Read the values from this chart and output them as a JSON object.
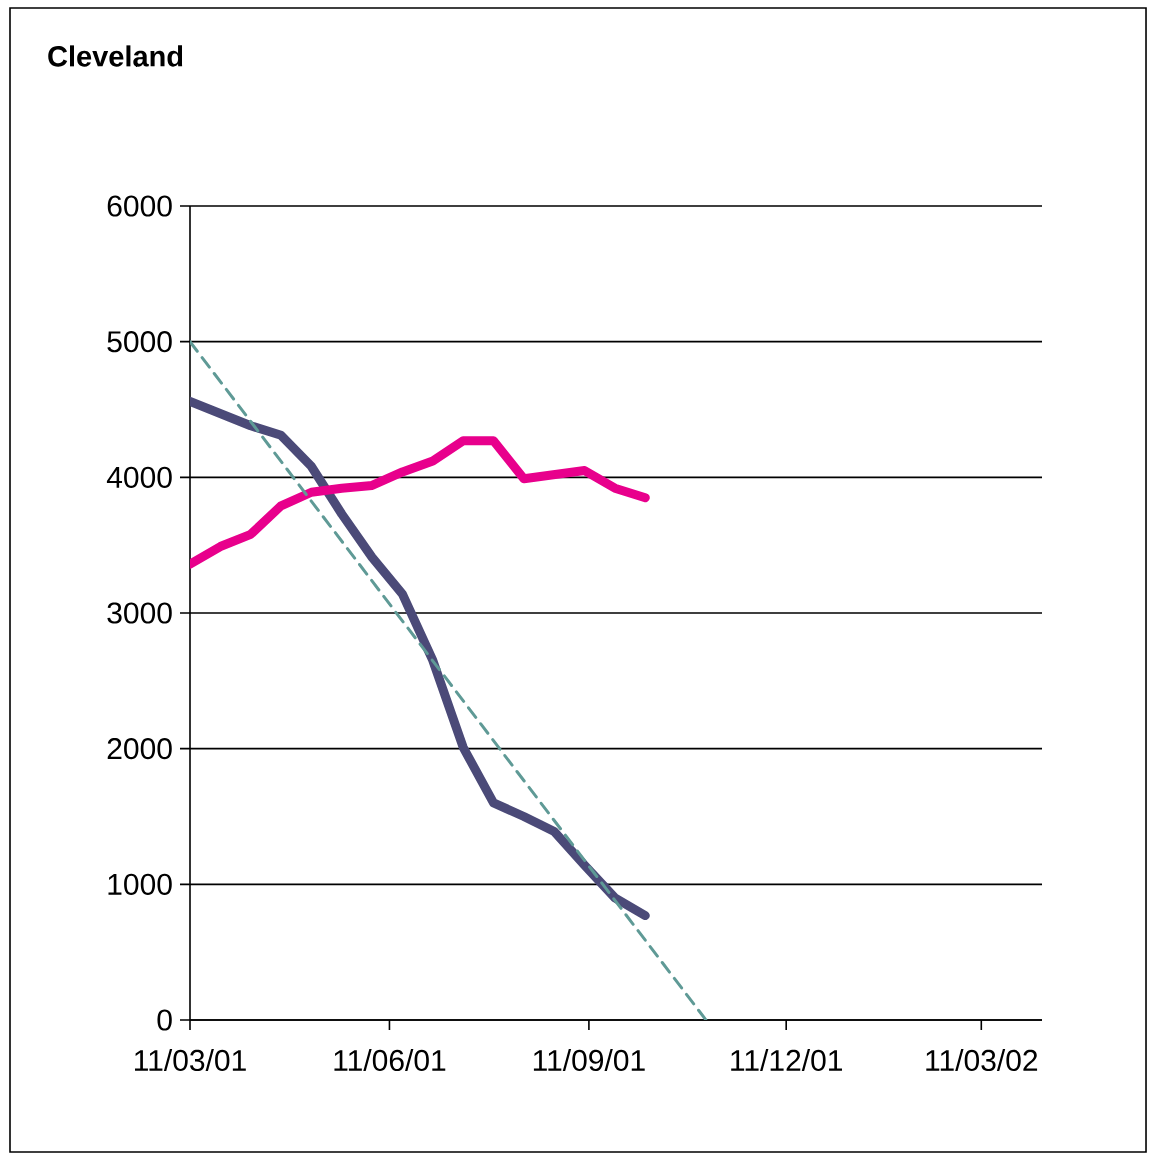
{
  "chart_data": {
    "type": "line",
    "title": "Cleveland",
    "x": [
      "2001-03-11",
      "2001-03-25",
      "2001-04-08",
      "2001-04-22",
      "2001-05-06",
      "2001-05-20",
      "2001-06-03",
      "2001-06-17",
      "2001-07-01",
      "2001-07-15",
      "2001-07-29",
      "2001-08-12",
      "2001-08-26",
      "2001-09-09",
      "2001-09-23",
      "2001-10-07"
    ],
    "series": [
      {
        "color": "#4b4a78",
        "values": [
          4560,
          4470,
          4380,
          4310,
          4080,
          3730,
          3410,
          3140,
          2650,
          2010,
          1600,
          1500,
          1390,
          1140,
          900,
          770
        ]
      },
      {
        "color": "#e8008c",
        "values": [
          3360,
          3490,
          3580,
          3790,
          3890,
          3920,
          3940,
          4040,
          4120,
          4270,
          4270,
          3990,
          4020,
          4050,
          3920,
          3850
        ]
      },
      {
        "color": "#5f9a96",
        "line_style": "dashed",
        "x": [
          "2001-03-11",
          "2001-11-04"
        ],
        "values": [
          5000,
          0
        ]
      }
    ],
    "xlim": [
      "2001-03-11",
      "2002-04-08"
    ],
    "xticks": [
      {
        "value": "2001-03-11",
        "label": "11/03/01"
      },
      {
        "value": "2001-06-11",
        "label": "11/06/01"
      },
      {
        "value": "2001-09-11",
        "label": "11/09/01"
      },
      {
        "value": "2001-12-11",
        "label": "11/12/01"
      },
      {
        "value": "2002-03-11",
        "label": "11/03/02"
      }
    ],
    "ylim": [
      0,
      6000
    ],
    "yticks": [
      0,
      1000,
      2000,
      3000,
      4000,
      5000,
      6000
    ],
    "grid": "y",
    "legend": false,
    "marker": "none",
    "line_style": "solid"
  }
}
